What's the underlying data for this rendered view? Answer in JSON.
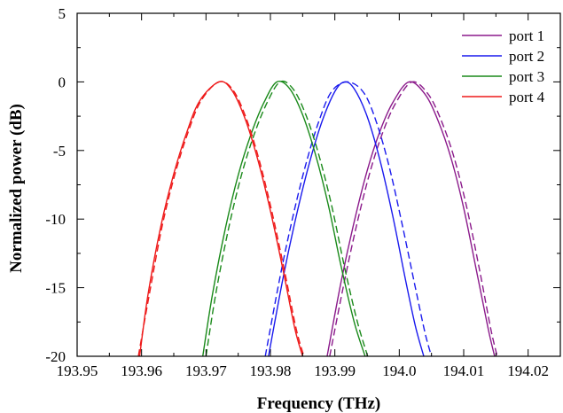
{
  "chart_data": {
    "type": "line",
    "title": "",
    "xlabel": "Frequency (THz)",
    "ylabel": "Normalized power (dB)",
    "xlim": [
      193.95,
      194.025
    ],
    "ylim": [
      -20,
      5
    ],
    "xticks": [
      193.95,
      193.96,
      193.97,
      193.98,
      193.99,
      194.0,
      194.01,
      194.02
    ],
    "xtick_labels": [
      "193.95",
      "193.96",
      "193.97",
      "193.98",
      "193.99",
      "194.0",
      "194.01",
      "194.02"
    ],
    "yticks": [
      -20,
      -15,
      -10,
      -5,
      0,
      5
    ],
    "ytick_labels": [
      "-20",
      "-15",
      "-10",
      "-5",
      "0",
      "5"
    ],
    "grid": false,
    "legend_position": "top-right",
    "series": [
      {
        "name": "port 1",
        "color": "#8b1a8b",
        "solid": {
          "x": [
            193.9888,
            193.991,
            193.993,
            193.995,
            193.997,
            193.999,
            194.0015,
            194.004,
            194.006,
            194.008,
            194.01,
            194.012,
            194.0138,
            194.0148
          ],
          "y": [
            -20,
            -14.5,
            -10.2,
            -6.5,
            -3.6,
            -1.5,
            0,
            -0.9,
            -2.8,
            -5.5,
            -9.2,
            -13.8,
            -18,
            -20
          ]
        },
        "dashed": {
          "x": [
            193.9892,
            193.9915,
            193.9935,
            193.9955,
            193.9975,
            193.9995,
            194.002,
            194.0045,
            194.0065,
            194.0085,
            194.0105,
            194.0125,
            194.0142,
            194.0152
          ],
          "y": [
            -20,
            -14.5,
            -10.2,
            -6.5,
            -3.6,
            -1.5,
            0,
            -0.9,
            -2.8,
            -5.5,
            -9.2,
            -13.8,
            -18,
            -20
          ]
        }
      },
      {
        "name": "port 2",
        "color": "#1a1aee",
        "solid": {
          "x": [
            193.9797,
            193.982,
            193.984,
            193.986,
            193.988,
            193.99,
            193.9915,
            193.993,
            193.995,
            193.997,
            193.999,
            194.001,
            194.0025,
            194.0038
          ],
          "y": [
            -20,
            -14.2,
            -9.8,
            -6.0,
            -2.9,
            -0.7,
            0,
            -0.5,
            -2.5,
            -5.7,
            -9.8,
            -14.5,
            -17.8,
            -20
          ]
        },
        "dashed": {
          "x": [
            193.9792,
            193.9815,
            193.9835,
            193.9855,
            193.9875,
            193.9895,
            193.992,
            193.9945,
            193.9965,
            193.9985,
            194.0005,
            194.0025,
            194.004,
            194.005
          ],
          "y": [
            -20,
            -14.2,
            -9.8,
            -6.0,
            -2.9,
            -0.7,
            0,
            -0.8,
            -3.0,
            -6.3,
            -10.5,
            -15.0,
            -18.3,
            -20
          ]
        }
      },
      {
        "name": "port 3",
        "color": "#1a8a1a",
        "solid": {
          "x": [
            193.9695,
            193.971,
            193.973,
            193.975,
            193.977,
            193.979,
            193.981,
            193.983,
            193.985,
            193.987,
            193.989,
            193.991,
            193.993,
            193.9947
          ],
          "y": [
            -20,
            -15.5,
            -10.7,
            -6.8,
            -3.8,
            -1.5,
            0,
            -0.5,
            -2.4,
            -5.3,
            -9.0,
            -13.5,
            -17.5,
            -20
          ]
        },
        "dashed": {
          "x": [
            193.97,
            193.9715,
            193.9735,
            193.9755,
            193.9775,
            193.9795,
            193.9815,
            193.9835,
            193.9855,
            193.9875,
            193.9895,
            193.9915,
            193.9935,
            193.9951
          ],
          "y": [
            -20,
            -15.5,
            -10.7,
            -6.8,
            -3.8,
            -1.5,
            0,
            -0.5,
            -2.4,
            -5.3,
            -9.0,
            -13.5,
            -17.5,
            -20
          ]
        }
      },
      {
        "name": "port 4",
        "color": "#ee1a1a",
        "solid": {
          "x": [
            193.9597,
            193.961,
            193.963,
            193.965,
            193.967,
            193.969,
            193.972,
            193.974,
            193.976,
            193.978,
            193.98,
            193.982,
            193.9838,
            193.985
          ],
          "y": [
            -20,
            -15.5,
            -10.5,
            -6.7,
            -3.7,
            -1.4,
            0,
            -0.6,
            -2.6,
            -5.6,
            -9.4,
            -13.8,
            -18.0,
            -20
          ]
        },
        "dashed": {
          "x": [
            193.9595,
            193.9612,
            193.9632,
            193.9652,
            193.9672,
            193.9692,
            193.972,
            193.9742,
            193.9762,
            193.9782,
            193.9802,
            193.9822,
            193.984,
            193.9852
          ],
          "y": [
            -20,
            -15.5,
            -10.5,
            -6.7,
            -3.7,
            -1.4,
            0,
            -0.6,
            -2.6,
            -5.6,
            -9.4,
            -13.8,
            -18.0,
            -20
          ]
        }
      }
    ]
  }
}
